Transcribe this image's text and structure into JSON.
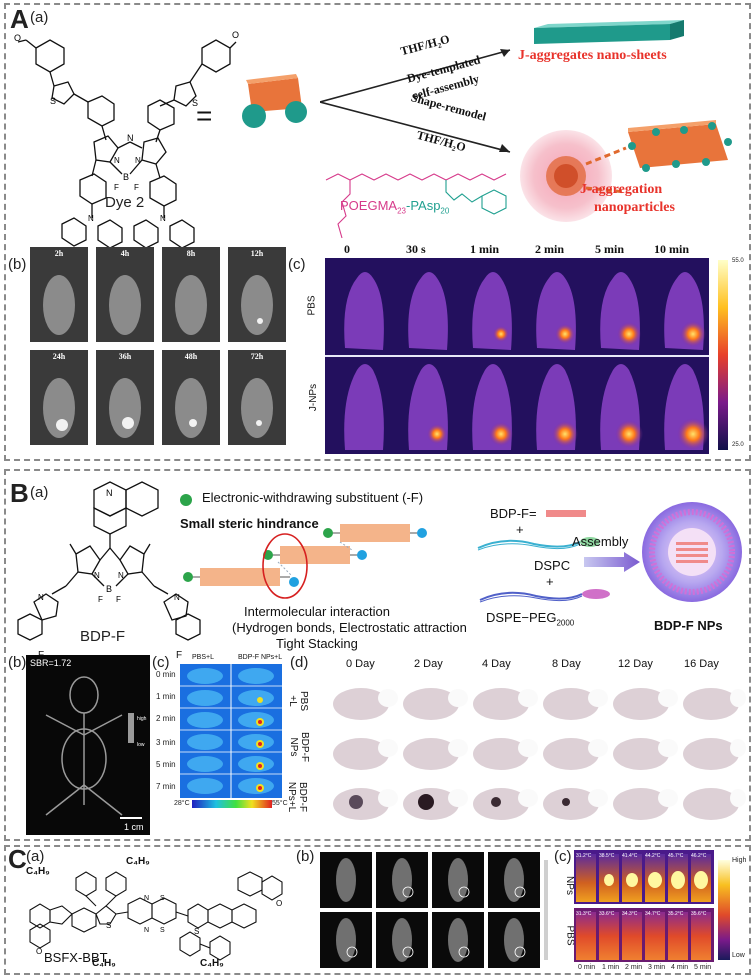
{
  "panelA": {
    "letter": "A",
    "a": {
      "label": "(a)",
      "dye": "Dye 2",
      "equals": "=",
      "arrow_top_1": "THF/H₂O",
      "arrow_top_2": "Dye-templated",
      "arrow_top_3": "self-assembly",
      "arrow_bot_1": "Shape-remodel",
      "arrow_bot_2": "THF/H₂O",
      "result_top": "J-aggregates nano-sheets",
      "result_bot_1": "J-aggregation",
      "result_bot_2": "nanoparticles",
      "polymer_1": "POEGMA",
      "polymer_1_sub": "23",
      "polymer_2": "-PAsp",
      "polymer_2_sub": "20"
    },
    "b": {
      "label": "(b)",
      "times": [
        "2h",
        "4h",
        "8h",
        "12h",
        "24h",
        "36h",
        "48h",
        "72h"
      ]
    },
    "c": {
      "label": "(c)",
      "times": [
        "0",
        "30 s",
        "1 min",
        "2 min",
        "5 min",
        "10 min"
      ],
      "rows": [
        "PBS",
        "J-NPs"
      ],
      "scale_max": "55.0",
      "scale_min": "25.0"
    }
  },
  "panelB": {
    "letter": "B",
    "a": {
      "label": "(a)",
      "dye": "BDP-F",
      "legend": "Electronic-withdrawing substituent (-F)",
      "hindrance": "Small steric hindrance",
      "interaction_1": "Intermolecular interaction",
      "interaction_2": "(Hydrogen bonds, Electrostatic attraction",
      "interaction_3": "Tight Stacking",
      "bdpf_eq": "BDP-F=",
      "plus": "+",
      "dspc": "DSPC",
      "dspe": "DSPE−PEG",
      "dspe_sub": "2000",
      "assembly": "Assembly",
      "result": "BDP-F NPs"
    },
    "b": {
      "label": "(b)",
      "sbr": "SBR=1.72",
      "scale": "1 cm",
      "bar_high": "high",
      "bar_low": "low"
    },
    "c": {
      "label": "(c)",
      "cols": [
        "PBS+L",
        "BDP-F NPs+L"
      ],
      "times": [
        "0 min",
        "1 min",
        "2 min",
        "3 min",
        "5 min",
        "7 min"
      ],
      "scale_min": "28°C",
      "scale_max": "55°C"
    },
    "d": {
      "label": "(d)",
      "days": [
        "0 Day",
        "2 Day",
        "4 Day",
        "8 Day",
        "12 Day",
        "16 Day"
      ],
      "rows": [
        [
          "PBS",
          "+L"
        ],
        [
          "BDP-F",
          "NPs"
        ],
        [
          "BDP-F",
          "NPs+L"
        ]
      ]
    }
  },
  "panelC": {
    "letter": "C",
    "a": {
      "label": "(a)",
      "dye": "BSFX-BBT",
      "sub_group": "C₄H₉"
    },
    "b": {
      "label": "(b)"
    },
    "c": {
      "label": "(c)",
      "rows": [
        "NPs",
        "PBS"
      ],
      "times": [
        "0 min",
        "1 min",
        "2 min",
        "3 min",
        "4 min",
        "5 min"
      ],
      "temps_top": [
        "31.2°C",
        "38.5°C",
        "41.4°C",
        "44.2°C",
        "45.7°C",
        "46.2°C"
      ],
      "temps_bot": [
        "31.3°C",
        "33.6°C",
        "34.3°C",
        "34.7°C",
        "35.2°C",
        "35.6°C"
      ],
      "high": "High",
      "low": "Low"
    }
  },
  "colors": {
    "border": "#8a8a8a",
    "red": "#e8332b",
    "teal": "#20a090",
    "green": "#2ca44a",
    "blue": "#21a1e0"
  }
}
